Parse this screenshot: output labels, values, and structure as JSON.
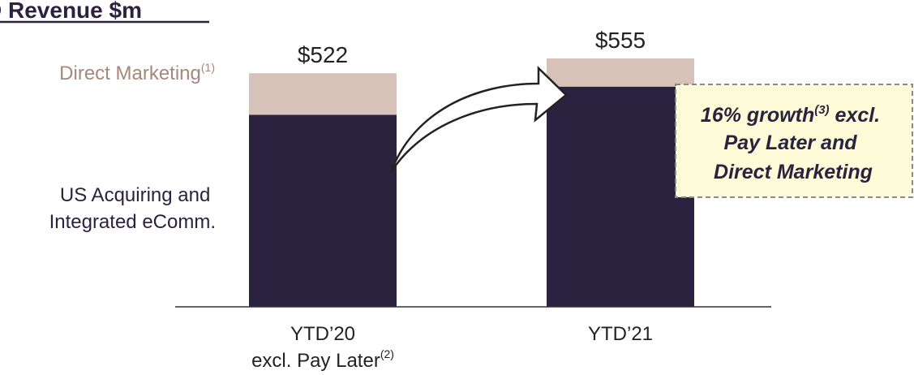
{
  "chart_data": {
    "type": "bar",
    "title": "D Revenue $m",
    "categories": [
      "YTD’20",
      "YTD’21"
    ],
    "category_sublabels": [
      "excl. Pay Later",
      ""
    ],
    "category_sublabel_superscripts": [
      "(2)",
      ""
    ],
    "series": [
      {
        "name": "US Acquiring and Integrated eComm.",
        "name_lines": [
          "US Acquiring and",
          "Integrated eComm."
        ],
        "color": "#2b2240",
        "values": [
          429,
          492
        ]
      },
      {
        "name": "Direct Marketing",
        "name_superscript": "(1)",
        "color": "#d6c2b8",
        "label_color": "#a7877a",
        "values": [
          93,
          63
        ]
      }
    ],
    "totals": [
      522,
      555
    ],
    "total_labels": [
      "$522",
      "$555"
    ],
    "ylim": [
      0,
      600
    ],
    "grid": false,
    "callout": {
      "lines": [
        "16% growth",
        "Pay Later and",
        "Direct Marketing"
      ],
      "line1_superscript": "(3)",
      "line1_suffix": " excl.",
      "fill": "#fdfbd8",
      "border": "#8a8a8a"
    }
  }
}
